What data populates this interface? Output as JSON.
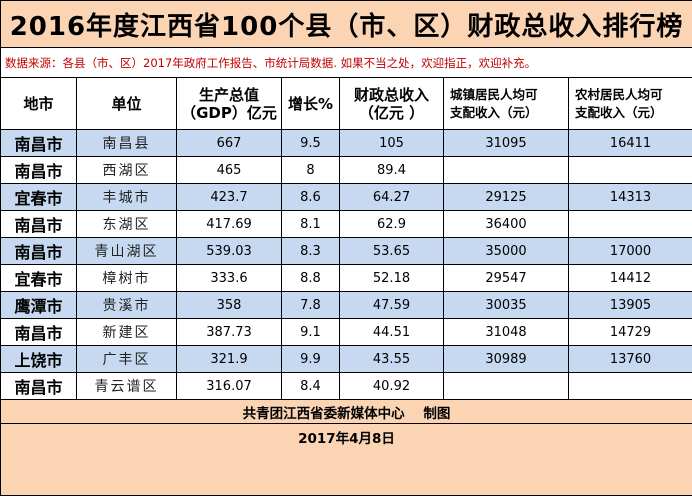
{
  "title": "2016年度江西省100个县（市、区）财政总收入排行榜",
  "source_note": "数据来源：各县（市、区）2017年政府工作报告、市统计局数据. 如果不当之处，欢迎指正，欢迎补充。",
  "headers": {
    "city": "地市",
    "unit": "单位",
    "gdp_line1": "生产总值",
    "gdp_line2": "（GDP）亿元",
    "growth": "增长%",
    "fiscal_line1": "财政总收入",
    "fiscal_line2": "（亿元 ）",
    "urban_line1": "城镇居民人均可",
    "urban_line2": "支配收入（元）",
    "rural_line1": "农村居民人均可",
    "rural_line2": "支配收入（元）"
  },
  "rows": [
    {
      "city": "南昌市",
      "unit": "南昌县",
      "gdp": "667",
      "growth": "9.5",
      "fiscal": "105",
      "urban": "31095",
      "rural": "16411"
    },
    {
      "city": "南昌市",
      "unit": "西湖区",
      "gdp": "465",
      "growth": "8",
      "fiscal": "89.4",
      "urban": "",
      "rural": ""
    },
    {
      "city": "宜春市",
      "unit": "丰城市",
      "gdp": "423.7",
      "growth": "8.6",
      "fiscal": "64.27",
      "urban": "29125",
      "rural": "14313"
    },
    {
      "city": "南昌市",
      "unit": "东湖区",
      "gdp": "417.69",
      "growth": "8.1",
      "fiscal": "62.9",
      "urban": "36400",
      "rural": ""
    },
    {
      "city": "南昌市",
      "unit": "青山湖区",
      "gdp": "539.03",
      "growth": "8.3",
      "fiscal": "53.65",
      "urban": "35000",
      "rural": "17000"
    },
    {
      "city": "宜春市",
      "unit": "樟树市",
      "gdp": "333.6",
      "growth": "8.8",
      "fiscal": "52.18",
      "urban": "29547",
      "rural": "14412"
    },
    {
      "city": "鹰潭市",
      "unit": "贵溪市",
      "gdp": "358",
      "growth": "7.8",
      "fiscal": "47.59",
      "urban": "30035",
      "rural": "13905"
    },
    {
      "city": "南昌市",
      "unit": "新建区",
      "gdp": "387.73",
      "growth": "9.1",
      "fiscal": "44.51",
      "urban": "31048",
      "rural": "14729"
    },
    {
      "city": "上饶市",
      "unit": "广丰区",
      "gdp": "321.9",
      "growth": "9.9",
      "fiscal": "43.55",
      "urban": "30989",
      "rural": "13760"
    },
    {
      "city": "南昌市",
      "unit": "青云谱区",
      "gdp": "316.07",
      "growth": "8.4",
      "fiscal": "40.92",
      "urban": "",
      "rural": ""
    }
  ],
  "footer": {
    "credit": "共青团江西省委新媒体中心    制图",
    "date": "2017年4月8日"
  },
  "colors": {
    "peach": "#fbd4b4",
    "blue_row": "#c6d9f1",
    "source_red": "#c00000"
  }
}
